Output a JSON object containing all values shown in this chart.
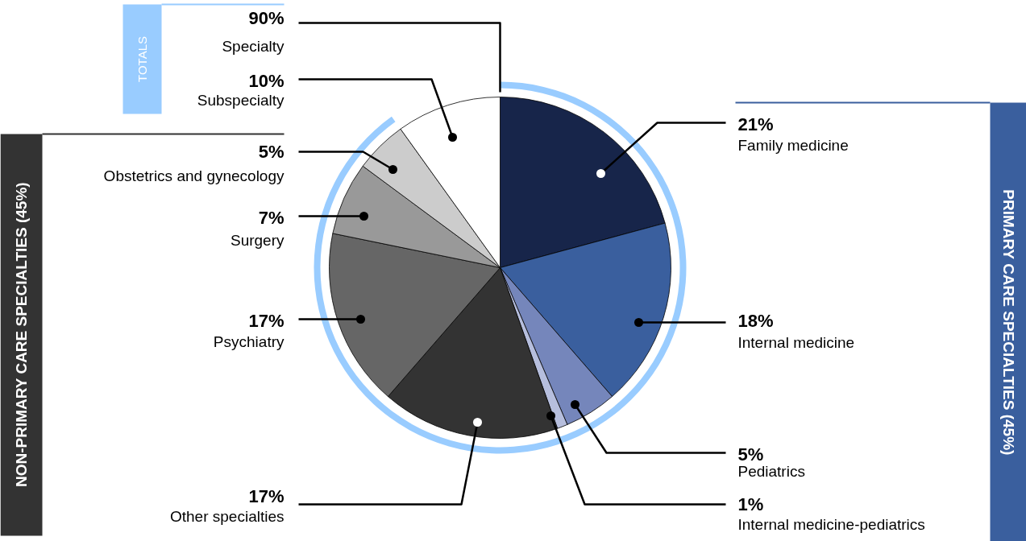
{
  "chart_data": {
    "type": "pie",
    "categories": [
      "Family medicine",
      "Internal medicine",
      "Pediatrics",
      "Internal medicine-pediatrics",
      "Other specialties",
      "Psychiatry",
      "Surgery",
      "Obstetrics and gynecology",
      "Subspecialty"
    ],
    "values": [
      21,
      18,
      5,
      1,
      17,
      17,
      7,
      5,
      10
    ],
    "colors": [
      "#17254a",
      "#3a5f9e",
      "#7586bb",
      "#b6bedd",
      "#333333",
      "#666666",
      "#999999",
      "#cccccc",
      "#ffffff"
    ],
    "value_labels": [
      "21%",
      "18%",
      "5%",
      "1%",
      "17%",
      "17%",
      "7%",
      "5%",
      "10%"
    ],
    "annotations": [
      "PRIMARY CARE SPECIALTIES (45%)",
      "NON-PRIMARY CARE SPECIALTIES (45%)",
      "TOTALS",
      "90%",
      "Specialty"
    ]
  }
}
